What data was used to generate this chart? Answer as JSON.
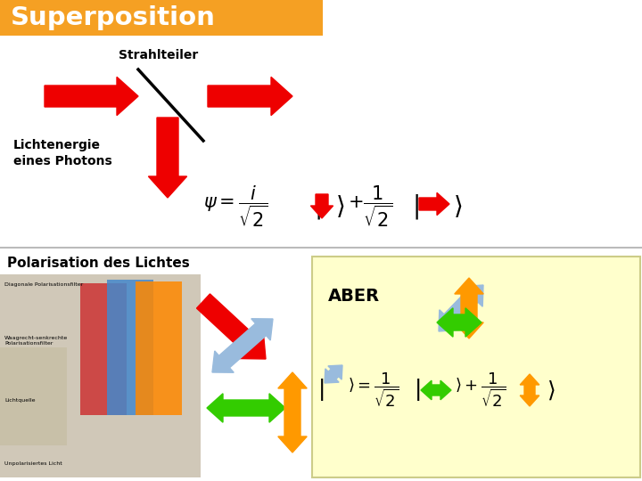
{
  "title": "Superposition",
  "title_bg": "#F5A023",
  "title_fg": "#FFFFFF",
  "bg_color": "#FFFFFF",
  "label_strahlteiler": "Strahlteiler",
  "label_lichtenergie": "Lichtenergie\neines Photons",
  "label_polarisation": "Polarisation des Lichtes",
  "label_aber": "ABER",
  "red": "#EE0000",
  "green": "#33CC00",
  "orange": "#FF9900",
  "lblue": "#99BBDD",
  "yellow_bg": "#FFFFCC",
  "yellow_edge": "#CCCC88",
  "gray_line": "#BBBBBB",
  "filter_blue": "#4488CC",
  "filter_red": "#CC3333",
  "filter_orange": "#FF8800"
}
